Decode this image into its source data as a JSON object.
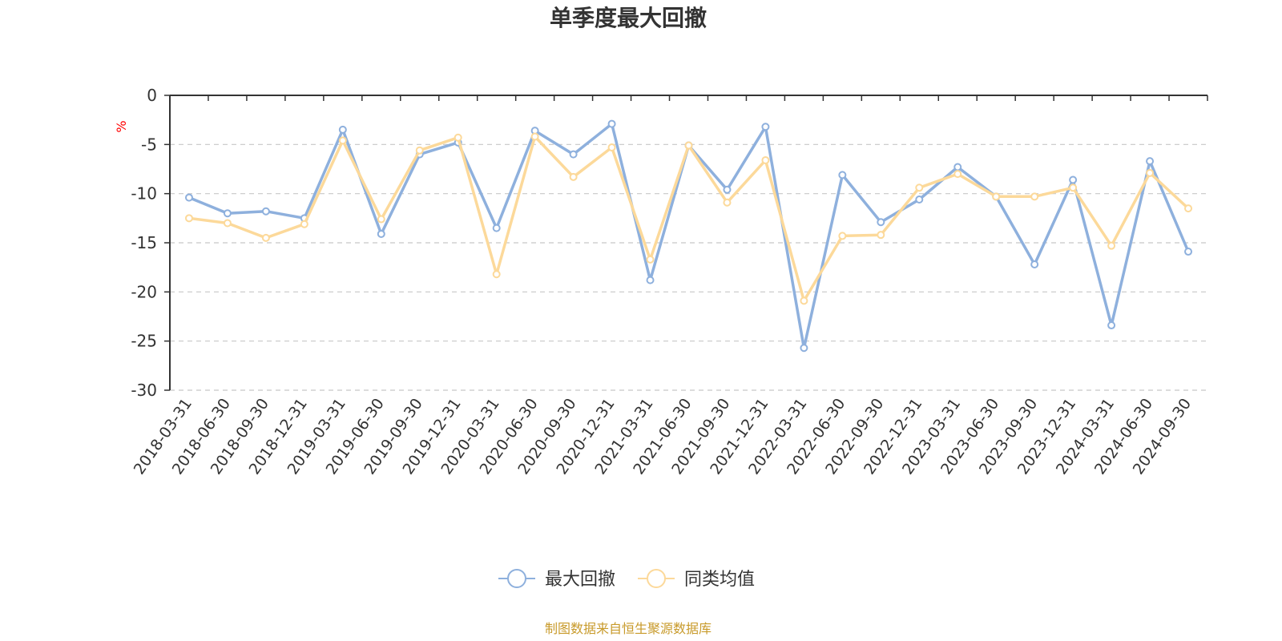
{
  "chart_data": {
    "type": "line",
    "title": "单季度最大回撤",
    "ylabel": "%",
    "ylim": [
      -30,
      0
    ],
    "yticks": [
      0,
      -5,
      -10,
      -15,
      -20,
      -25,
      -30
    ],
    "grid": true,
    "legend_position": "bottom",
    "categories": [
      "2018-03-31",
      "2018-06-30",
      "2018-09-30",
      "2018-12-31",
      "2019-03-31",
      "2019-06-30",
      "2019-09-30",
      "2019-12-31",
      "2020-03-31",
      "2020-06-30",
      "2020-09-30",
      "2020-12-31",
      "2021-03-31",
      "2021-06-30",
      "2021-09-30",
      "2021-12-31",
      "2022-03-31",
      "2022-06-30",
      "2022-09-30",
      "2022-12-31",
      "2023-03-31",
      "2023-06-30",
      "2023-09-30",
      "2023-12-31",
      "2024-03-31",
      "2024-06-30",
      "2024-09-30"
    ],
    "series": [
      {
        "name": "最大回撤",
        "color": "#8eb0dd",
        "values": [
          -10.4,
          -12.0,
          -11.8,
          -12.5,
          -3.5,
          -14.1,
          -6.0,
          -4.8,
          -13.5,
          -3.6,
          -6.0,
          -2.9,
          -18.8,
          -5.1,
          -9.6,
          -3.2,
          -25.7,
          -8.1,
          -12.9,
          -10.6,
          -7.3,
          -10.3,
          -17.2,
          -8.6,
          -23.4,
          -6.7,
          -15.9
        ]
      },
      {
        "name": "同类均值",
        "color": "#fcd99a",
        "values": [
          -12.5,
          -13.0,
          -14.5,
          -13.1,
          -4.6,
          -12.6,
          -5.6,
          -4.3,
          -18.2,
          -4.2,
          -8.3,
          -5.3,
          -16.7,
          -5.1,
          -10.9,
          -6.6,
          -20.9,
          -14.3,
          -14.2,
          -9.4,
          -8.0,
          -10.3,
          -10.3,
          -9.4,
          -15.3,
          -7.9,
          -11.5
        ]
      }
    ]
  },
  "source_note": "制图数据来自恒生聚源数据库"
}
